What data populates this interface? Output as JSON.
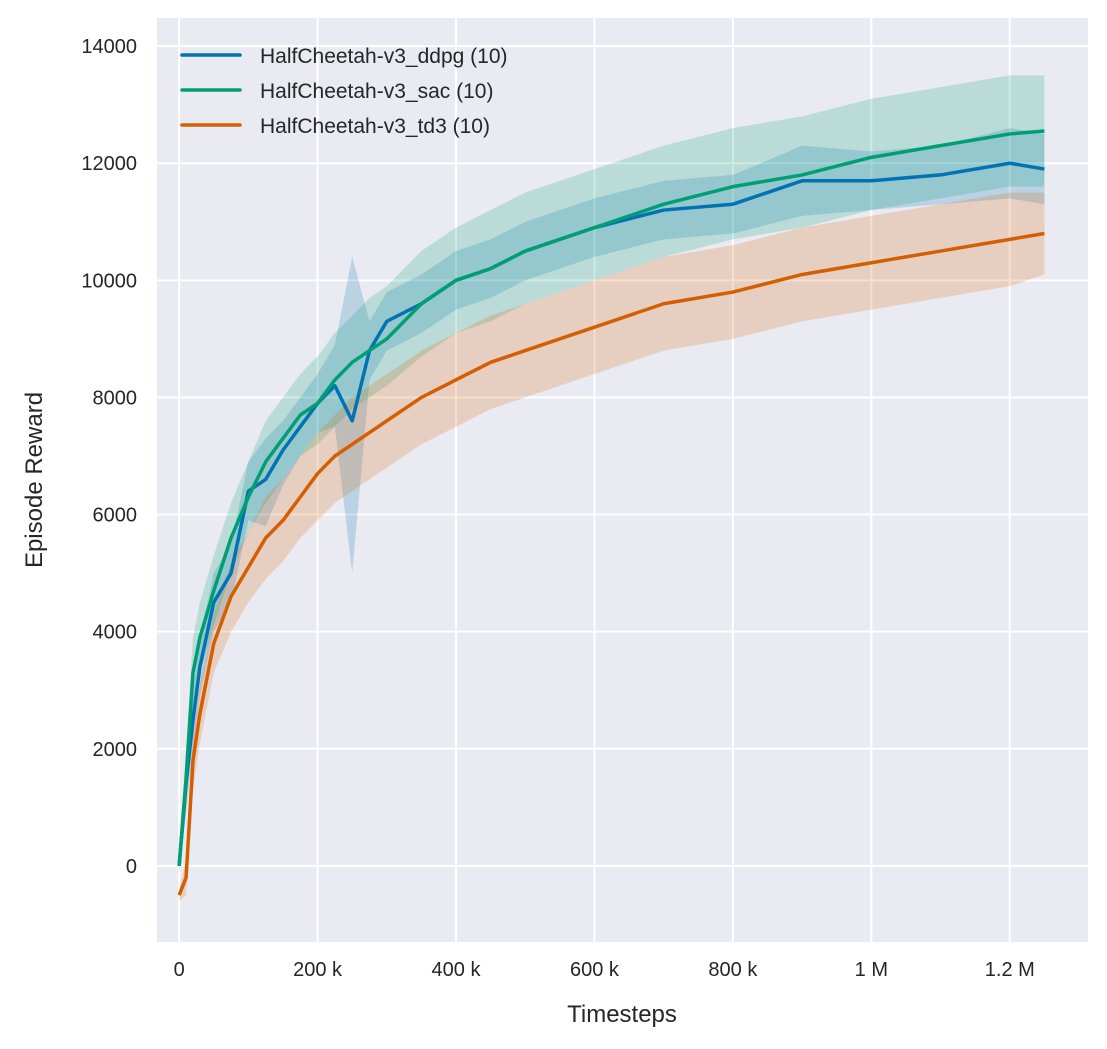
{
  "chart_data": {
    "type": "line",
    "xlabel": "Timesteps",
    "ylabel": "Episode Reward",
    "xlim": [
      -32000,
      1313000
    ],
    "ylim": [
      -1300,
      14480
    ],
    "grid": true,
    "legend_position": "top-left",
    "xticks": [
      0,
      200000,
      400000,
      600000,
      800000,
      1000000,
      1200000
    ],
    "xtick_labels": [
      "0",
      "200 k",
      "400 k",
      "600 k",
      "800 k",
      "1 M",
      "1.2 M"
    ],
    "yticks": [
      0,
      2000,
      4000,
      6000,
      8000,
      10000,
      12000,
      14000
    ],
    "ytick_labels": [
      "0",
      "2000",
      "4000",
      "6000",
      "8000",
      "10000",
      "12000",
      "14000"
    ],
    "x": [
      0,
      10000,
      20000,
      30000,
      50000,
      75000,
      100000,
      125000,
      150000,
      175000,
      200000,
      225000,
      250000,
      275000,
      300000,
      350000,
      400000,
      450000,
      500000,
      600000,
      700000,
      800000,
      900000,
      1000000,
      1100000,
      1200000,
      1250000
    ],
    "series": [
      {
        "name": "HalfCheetah-v3_ddpg (10)",
        "color": "#0173b2",
        "values": [
          0,
          1400,
          2500,
          3400,
          4500,
          5000,
          6400,
          6600,
          7100,
          7500,
          7900,
          8200,
          7600,
          8800,
          9300,
          9600,
          10000,
          10200,
          10500,
          10900,
          11200,
          11300,
          11700,
          11700,
          11800,
          12000,
          11900
        ],
        "lower": [
          -100,
          900,
          2000,
          2900,
          4000,
          4500,
          5900,
          5800,
          6500,
          7000,
          7400,
          7500,
          5000,
          8300,
          8800,
          9100,
          9500,
          9700,
          10000,
          10400,
          10700,
          10800,
          11100,
          11200,
          11300,
          11400,
          11300
        ],
        "upper": [
          100,
          1900,
          3000,
          3900,
          5000,
          5500,
          6900,
          7300,
          7600,
          8000,
          8400,
          8900,
          10400,
          9300,
          9800,
          10100,
          10500,
          10700,
          11000,
          11400,
          11700,
          11800,
          12300,
          12200,
          12300,
          12600,
          12500
        ]
      },
      {
        "name": "HalfCheetah-v3_sac (10)",
        "color": "#029e73",
        "values": [
          0,
          1500,
          3300,
          3900,
          4700,
          5600,
          6300,
          6900,
          7300,
          7700,
          7900,
          8300,
          8600,
          8800,
          9000,
          9600,
          10000,
          10200,
          10500,
          10900,
          11300,
          11600,
          11800,
          12100,
          12300,
          12500,
          12550
        ],
        "lower": [
          -100,
          1000,
          2700,
          3300,
          4100,
          5000,
          5700,
          6200,
          6600,
          7000,
          7200,
          7500,
          7800,
          8000,
          8200,
          8700,
          9100,
          9300,
          9600,
          10000,
          10400,
          10700,
          10900,
          11200,
          11400,
          11600,
          11600
        ],
        "upper": [
          100,
          2000,
          3900,
          4500,
          5300,
          6200,
          6900,
          7600,
          8000,
          8400,
          8700,
          9100,
          9400,
          9700,
          9900,
          10500,
          10900,
          11200,
          11500,
          11900,
          12300,
          12600,
          12800,
          13100,
          13300,
          13500,
          13500
        ]
      },
      {
        "name": "HalfCheetah-v3_td3 (10)",
        "color": "#d55e00",
        "values": [
          -500,
          -200,
          1800,
          2600,
          3800,
          4600,
          5100,
          5600,
          5900,
          6300,
          6700,
          7000,
          7200,
          7400,
          7600,
          8000,
          8300,
          8600,
          8800,
          9200,
          9600,
          9800,
          10100,
          10300,
          10500,
          10700,
          10800
        ],
        "lower": [
          -600,
          -500,
          1300,
          2100,
          3300,
          4000,
          4500,
          4900,
          5200,
          5600,
          5900,
          6200,
          6400,
          6600,
          6800,
          7200,
          7500,
          7800,
          8000,
          8400,
          8800,
          9000,
          9300,
          9500,
          9700,
          9900,
          10100
        ],
        "upper": [
          -400,
          100,
          2300,
          3100,
          4300,
          5200,
          5700,
          6300,
          6600,
          7000,
          7400,
          7700,
          8000,
          8200,
          8400,
          8800,
          9100,
          9400,
          9600,
          10000,
          10400,
          10600,
          10900,
          11100,
          11300,
          11500,
          11500
        ]
      }
    ]
  }
}
